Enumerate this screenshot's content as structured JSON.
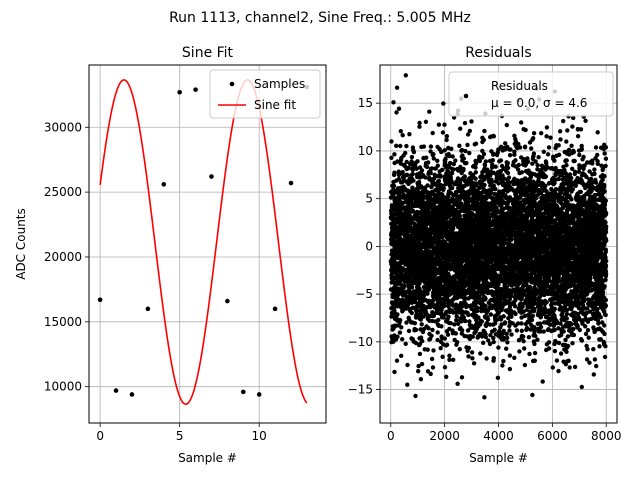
{
  "suptitle": "Run 1113, channel2, Sine Freq.: 5.005 MHz",
  "chart_data": [
    {
      "type": "line",
      "title": "Sine Fit",
      "xlabel": "Sample #",
      "ylabel": "ADC Counts",
      "xlim": [
        -0.7,
        14.2
      ],
      "ylim": [
        7200,
        34800
      ],
      "xticks": [
        0,
        5,
        10
      ],
      "yticks": [
        10000,
        15000,
        20000,
        25000,
        30000
      ],
      "grid": true,
      "legend_position": "top-right",
      "series": [
        {
          "name": "Samples",
          "style": "points",
          "color": "#000000",
          "x": [
            0,
            1,
            2,
            3,
            4,
            5,
            6,
            7,
            8,
            9,
            10,
            11,
            12,
            13
          ],
          "y": [
            16700,
            9700,
            9400,
            16000,
            25600,
            32700,
            32900,
            26200,
            16600,
            9600,
            9400,
            16000,
            25700,
            33100
          ]
        },
        {
          "name": "Sine fit",
          "style": "line",
          "color": "#ff0000",
          "fit": {
            "offset": 21150,
            "amplitude": 12500,
            "period": 7.77,
            "phase": 0.36,
            "x_range": [
              0,
              13
            ]
          }
        }
      ]
    },
    {
      "type": "scatter",
      "title": "Residuals",
      "xlabel": "Sample #",
      "ylabel": "",
      "xlim": [
        -400,
        8400
      ],
      "ylim": [
        -18.5,
        19
      ],
      "xticks": [
        0,
        2000,
        4000,
        6000,
        8000
      ],
      "yticks": [
        -15,
        -10,
        -5,
        0,
        5,
        10,
        15
      ],
      "grid": true,
      "legend_position": "top-right",
      "series": [
        {
          "name": "Residuals",
          "label_line2": "μ = 0.0, σ = 4.6",
          "color": "#000000",
          "count": 8000,
          "mean": 0.0,
          "std": 4.6,
          "x_range": [
            0,
            8000
          ]
        }
      ]
    }
  ]
}
